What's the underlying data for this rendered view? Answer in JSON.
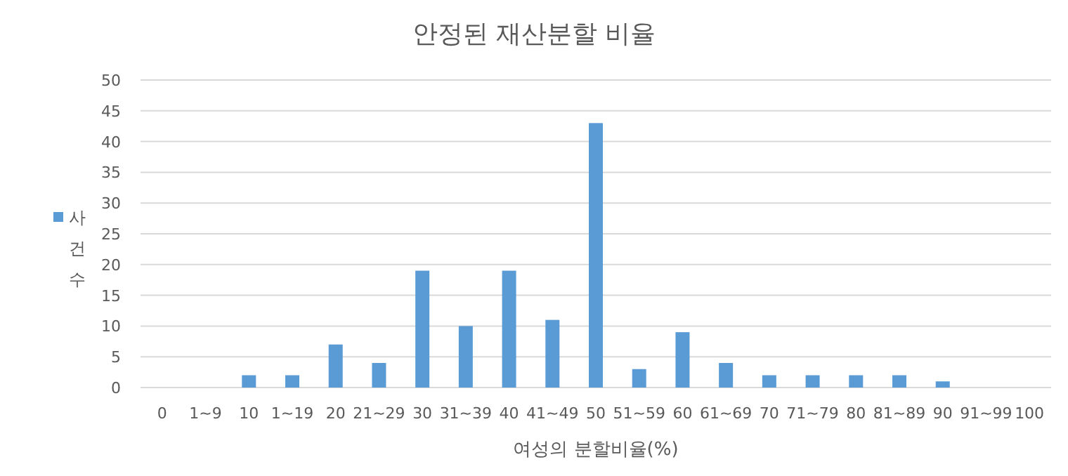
{
  "chart_data": {
    "type": "bar",
    "title": "안정된 재산분할 비율",
    "xlabel": "여성의 분할비율(%)",
    "categories": [
      "0",
      "1~9",
      "10",
      "1~19",
      "20",
      "21~29",
      "30",
      "31~39",
      "40",
      "41~49",
      "50",
      "51~59",
      "60",
      "61~69",
      "70",
      "71~79",
      "80",
      "81~89",
      "90",
      "91~99",
      "100"
    ],
    "series": [
      {
        "name": "사건수",
        "color": "#5b9bd5",
        "values": [
          0,
          0,
          2,
          2,
          7,
          4,
          19,
          10,
          19,
          11,
          43,
          3,
          9,
          4,
          2,
          2,
          2,
          2,
          1,
          0,
          0
        ]
      }
    ],
    "ylim": [
      0,
      50
    ],
    "yticks": [
      0,
      5,
      10,
      15,
      20,
      25,
      30,
      35,
      40,
      45,
      50
    ],
    "grid": "y",
    "legend": "left"
  }
}
